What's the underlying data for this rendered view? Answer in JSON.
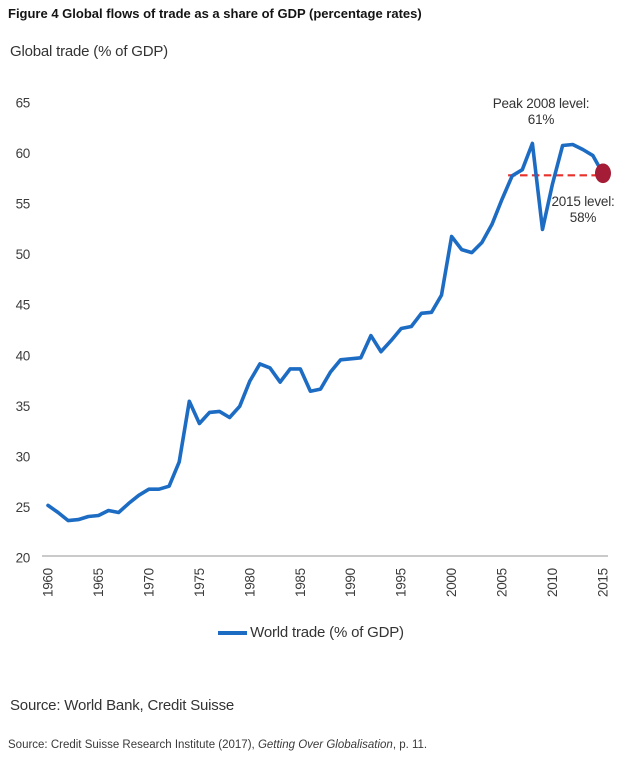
{
  "figure": {
    "title": "Figure 4 Global flows of trade as a share of GDP (percentage rates)",
    "chart_heading": "Global trade (% of GDP)",
    "source_primary": "Source: World Bank, Credit Suisse",
    "citation": {
      "prefix": "Source: Credit Suisse Research Institute (2017), ",
      "work_title": "Getting Over Globalisation",
      "suffix": ", p. 11."
    }
  },
  "annotations": {
    "peak": {
      "line1": "Peak 2008 level:",
      "line2": "61%"
    },
    "latest": {
      "line1": "2015 level:",
      "line2": "58%"
    }
  },
  "legend": {
    "label": "World trade (% of GDP)"
  },
  "colors": {
    "line": "#1d6cc4",
    "dashed_line": "#e8312b",
    "marker": "#a41c35",
    "axis": "#b8b8b8",
    "tick_text": "#3d3d3d"
  },
  "chart_data": {
    "type": "line",
    "title": "Global trade (% of GDP)",
    "xlabel": "",
    "ylabel": "",
    "grid": false,
    "legend_position": "bottom",
    "xlim": [
      1960,
      2015
    ],
    "ylim": [
      20,
      65
    ],
    "y_tick_step": 5,
    "x_ticks": [
      "1960",
      "1965",
      "1970",
      "1975",
      "1980",
      "1985",
      "1990",
      "1995",
      "2000",
      "2005",
      "2010",
      "2015"
    ],
    "series": [
      {
        "name": "World trade (% of GDP)",
        "x": [
          1960,
          1961,
          1962,
          1963,
          1964,
          1965,
          1966,
          1967,
          1968,
          1969,
          1970,
          1971,
          1972,
          1973,
          1974,
          1975,
          1976,
          1977,
          1978,
          1979,
          1980,
          1981,
          1982,
          1983,
          1984,
          1985,
          1986,
          1987,
          1988,
          1989,
          1990,
          1991,
          1992,
          1993,
          1994,
          1995,
          1996,
          1997,
          1998,
          1999,
          2000,
          2001,
          2002,
          2003,
          2004,
          2005,
          2006,
          2007,
          2008,
          2009,
          2010,
          2011,
          2012,
          2013,
          2014,
          2015
        ],
        "values": [
          25.2,
          24.5,
          23.7,
          23.8,
          24.1,
          24.2,
          24.7,
          24.5,
          25.4,
          26.2,
          26.8,
          26.8,
          27.1,
          29.5,
          35.5,
          33.3,
          34.4,
          34.5,
          33.9,
          35.0,
          37.5,
          39.2,
          38.8,
          37.4,
          38.7,
          38.7,
          36.5,
          36.7,
          38.4,
          39.6,
          39.7,
          39.8,
          42.0,
          40.4,
          41.5,
          42.7,
          42.9,
          44.2,
          44.3,
          46.0,
          51.8,
          50.5,
          50.2,
          51.2,
          53.0,
          55.5,
          57.8,
          58.4,
          61.0,
          52.5,
          57.0,
          60.8,
          60.9,
          60.4,
          59.8,
          58.0
        ]
      }
    ],
    "reference": {
      "dashed_level": 57.85,
      "dashed_from_year": 2005.6,
      "dashed_to_year": 2014.8,
      "marker": {
        "year": 2015,
        "value": 58.05
      },
      "peak_value_label": "61%",
      "latest_value_label": "58%"
    }
  }
}
